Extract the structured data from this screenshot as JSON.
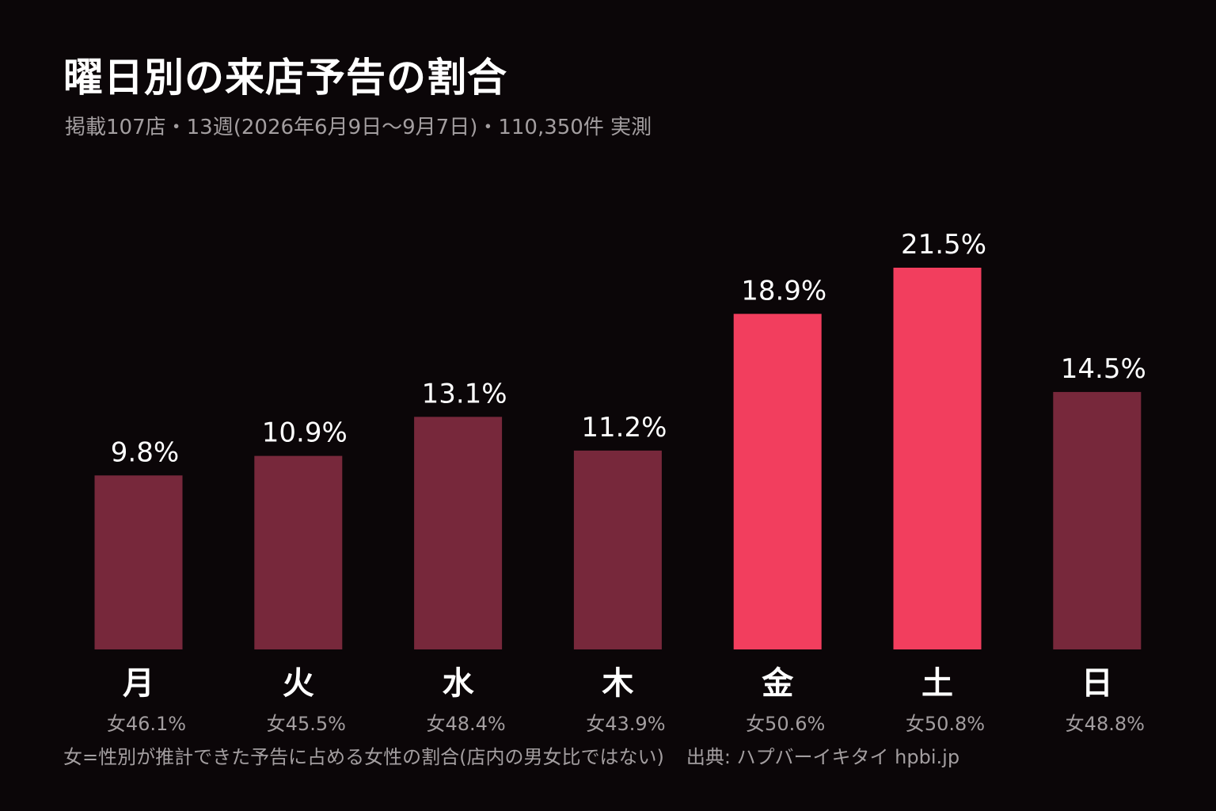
{
  "title": "曜日別の来店予告の割合",
  "subtitle": "掲載107店・13週(2026年6月9日〜9月7日)・110,350件 実測",
  "footnote": "女=性別が推計できた予告に占める女性の割合(店内の男女比ではない)",
  "source": "出典: ハプバーイキタイ hpbi.jp",
  "colors": {
    "background": "#0b0608",
    "bar_default": "#77283b",
    "bar_highlight": "#f23e5e",
    "text_main": "#ffffff",
    "text_muted": "#a39ea0"
  },
  "chart_data": {
    "type": "bar",
    "title": "曜日別の来店予告の割合",
    "categories": [
      "月",
      "火",
      "水",
      "木",
      "金",
      "土",
      "日"
    ],
    "values": [
      9.8,
      10.9,
      13.1,
      11.2,
      18.9,
      21.5,
      14.5
    ],
    "value_labels": [
      "9.8%",
      "10.9%",
      "13.1%",
      "11.2%",
      "18.9%",
      "21.5%",
      "14.5%"
    ],
    "female_labels": [
      "女46.1%",
      "女45.5%",
      "女48.4%",
      "女43.9%",
      "女50.6%",
      "女50.8%",
      "女48.8%"
    ],
    "female_share": [
      46.1,
      45.5,
      48.4,
      43.9,
      50.6,
      50.8,
      48.8
    ],
    "highlighted": [
      "金",
      "土"
    ],
    "ylim": [
      0,
      21.5
    ],
    "grid": false,
    "xlabel": "",
    "ylabel": ""
  }
}
